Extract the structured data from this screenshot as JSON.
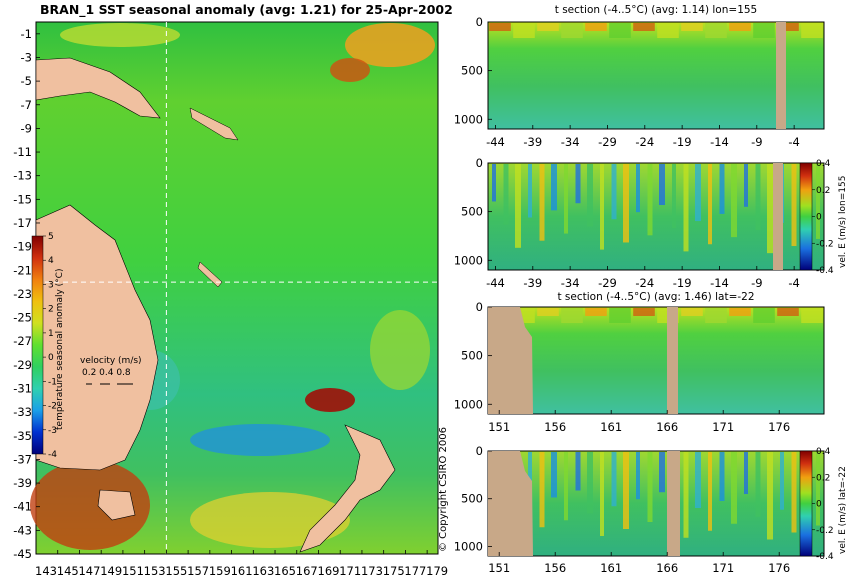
{
  "chart_data": [
    {
      "type": "heatmap",
      "title": "BRAN_1 SST seasonal anomaly (avg: 1.21) for 25-Apr-2002",
      "y_ticks": [
        "-1",
        "-3",
        "-5",
        "-7",
        "-9",
        "-11",
        "-13",
        "-15",
        "-17",
        "-19",
        "-21",
        "-23",
        "-25",
        "-27",
        "-29",
        "-31",
        "-33",
        "-35",
        "-37",
        "-39",
        "-41",
        "-43",
        "-45"
      ],
      "x_ticks": [
        "143",
        "145",
        "147",
        "149",
        "151",
        "153",
        "155",
        "157",
        "159",
        "161",
        "163",
        "165",
        "167",
        "169",
        "171",
        "173",
        "175",
        "177",
        "179"
      ],
      "xlim": [
        143,
        180
      ],
      "ylim": [
        -45,
        0
      ],
      "section_lon": 155,
      "section_lat": -22,
      "colorbar": {
        "label": "temperature seasonal anomaly (°C)",
        "ticks": [
          "5",
          "4",
          "3",
          "2",
          "1",
          "0",
          "-1",
          "-2",
          "-3",
          "-4"
        ],
        "range": [
          -4,
          5
        ]
      },
      "velocity_legend": {
        "title": "velocity (m/s)",
        "values": "0.2 0.4 0.8"
      },
      "colormap": [
        "#00007a",
        "#0030d0",
        "#1aa0e8",
        "#30d0b0",
        "#30d060",
        "#60e030",
        "#d0e020",
        "#f0c010",
        "#f08010",
        "#d03010",
        "#800000"
      ],
      "land_color": "#f0c0a0"
    },
    {
      "type": "heatmap",
      "title": "t section (-4..5°C) (avg: 1.14) lon=155",
      "x_ticks": [
        "-44",
        "-39",
        "-34",
        "-29",
        "-24",
        "-19",
        "-14",
        "-9",
        "-4"
      ],
      "y_ticks": [
        "0",
        "500",
        "1000"
      ]
    },
    {
      "type": "heatmap",
      "title": "",
      "x_ticks": [
        "-44",
        "-39",
        "-34",
        "-29",
        "-24",
        "-19",
        "-14",
        "-9",
        "-4"
      ],
      "y_ticks": [
        "0",
        "500",
        "1000"
      ],
      "colorbar": {
        "label": "vel. E (m/s) lon=155",
        "ticks": [
          "0.4",
          "0.2",
          "0",
          "-0.2",
          "-0.4"
        ],
        "range": [
          -0.4,
          0.4
        ]
      }
    },
    {
      "type": "heatmap",
      "title": "t section (-4..5°C) (avg: 1.46) lat=-22",
      "x_ticks": [
        "151",
        "156",
        "161",
        "166",
        "171",
        "176"
      ],
      "y_ticks": [
        "0",
        "500",
        "1000"
      ]
    },
    {
      "type": "heatmap",
      "title": "",
      "x_ticks": [
        "151",
        "156",
        "161",
        "166",
        "171",
        "176"
      ],
      "y_ticks": [
        "0",
        "500",
        "1000"
      ],
      "colorbar": {
        "label": "vel. E (m/s) lat=-22",
        "ticks": [
          "0.4",
          "0.2",
          "0",
          "-0.2",
          "-0.4"
        ],
        "range": [
          -0.4,
          0.4
        ]
      }
    }
  ],
  "copyright": "© Copyright CSIRO 2006"
}
